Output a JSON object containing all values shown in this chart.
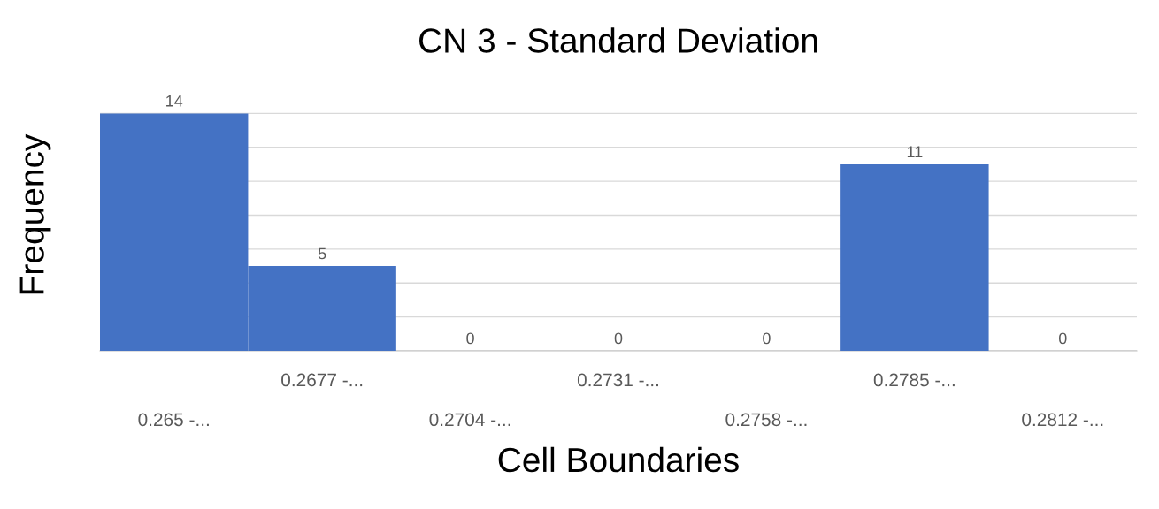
{
  "chart_data": {
    "type": "bar",
    "title": "CN 3 - Standard Deviation",
    "xlabel": "Cell Boundaries",
    "ylabel": "Frequency",
    "categories": [
      "0.265 -...",
      "0.2677 -...",
      "0.2704 -...",
      "0.2731 -...",
      "0.2758 -...",
      "0.2785 -...",
      "0.2812 -..."
    ],
    "values": [
      14,
      5,
      0,
      0,
      0,
      11,
      0
    ],
    "color": "#4472c4",
    "data_labels": true,
    "ylim": [
      0,
      16
    ],
    "yticks": [
      {
        "value": 0,
        "label": null
      },
      {
        "value": 2,
        "label": null
      },
      {
        "value": 4,
        "label": null
      },
      {
        "value": 6,
        "label": null
      },
      {
        "value": 8,
        "label": null
      },
      {
        "value": 10,
        "label": null
      },
      {
        "value": 12,
        "label": null
      },
      {
        "value": 14,
        "label": null
      },
      {
        "value": 16,
        "label": null
      }
    ],
    "grid": "y",
    "tick_labels": "x"
  }
}
